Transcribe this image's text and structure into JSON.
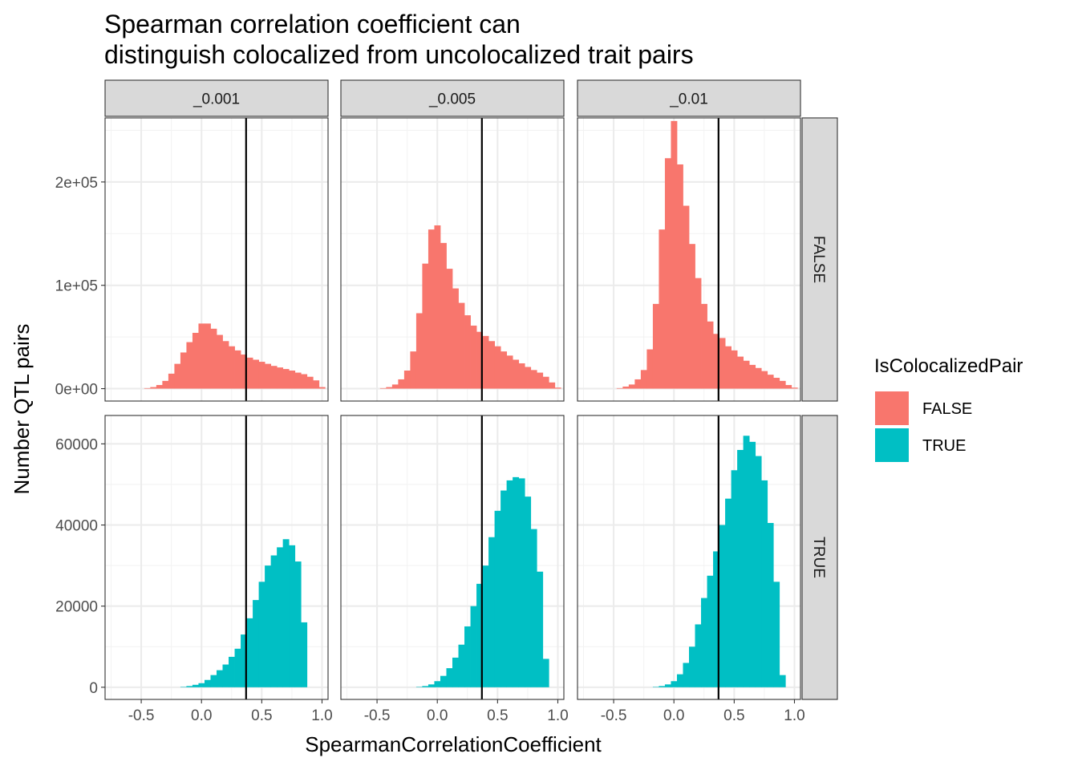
{
  "chart_data": {
    "type": "bar",
    "title": "Spearman correlation coefficient can\ndistinguish colocalized from uncolocalized trait pairs",
    "xlabel": "SpearmanCorrelationCoefficient",
    "ylabel": "Number QTL pairs",
    "facet_columns": [
      "_0.001",
      "_0.005",
      "_0.01"
    ],
    "facet_rows": [
      "FALSE",
      "TRUE"
    ],
    "x_ticks": [
      "-0.5",
      "0.0",
      "0.5",
      "1.0"
    ],
    "x_tick_values": [
      -0.5,
      0.0,
      0.5,
      1.0
    ],
    "xlim": [
      -0.8,
      1.05
    ],
    "y_ticks": {
      "FALSE": {
        "labels": [
          "0e+00",
          "1e+05",
          "2e+05"
        ],
        "values": [
          0,
          100000,
          200000
        ]
      },
      "TRUE": {
        "labels": [
          "0",
          "20000",
          "40000",
          "60000"
        ],
        "values": [
          0,
          20000,
          40000,
          60000
        ]
      }
    },
    "ylim": {
      "FALSE": [
        -12000,
        262000
      ],
      "TRUE": [
        -3000,
        67000
      ]
    },
    "vline_x": 0.37,
    "bin_width": 0.05,
    "grid": true,
    "legend": {
      "title": "IsColocalizedPair",
      "position": "right",
      "entries": [
        {
          "label": "FALSE",
          "color": "#F8766D"
        },
        {
          "label": "TRUE",
          "color": "#00BFC4"
        }
      ]
    },
    "series": [
      {
        "facet": "_0.001",
        "row": "FALSE",
        "x": [
          -0.45,
          -0.4,
          -0.35,
          -0.3,
          -0.25,
          -0.2,
          -0.15,
          -0.1,
          -0.05,
          0.0,
          0.05,
          0.1,
          0.15,
          0.2,
          0.25,
          0.3,
          0.35,
          0.4,
          0.45,
          0.5,
          0.55,
          0.6,
          0.65,
          0.7,
          0.75,
          0.8,
          0.85,
          0.9,
          0.95,
          1.0
        ],
        "values": [
          500,
          1500,
          3500,
          7500,
          14500,
          24000,
          35000,
          45000,
          54000,
          63000,
          63000,
          58000,
          52000,
          46000,
          41000,
          37000,
          33000,
          30000,
          28000,
          26000,
          24000,
          22000,
          20500,
          19000,
          17500,
          15500,
          14000,
          11500,
          8000,
          1500
        ]
      },
      {
        "facet": "_0.005",
        "row": "FALSE",
        "x": [
          -0.45,
          -0.4,
          -0.35,
          -0.3,
          -0.25,
          -0.2,
          -0.15,
          -0.1,
          -0.05,
          0.0,
          0.05,
          0.1,
          0.15,
          0.2,
          0.25,
          0.3,
          0.35,
          0.4,
          0.45,
          0.5,
          0.55,
          0.6,
          0.65,
          0.7,
          0.75,
          0.8,
          0.85,
          0.9,
          0.95,
          1.0
        ],
        "values": [
          500,
          1500,
          4000,
          9000,
          17500,
          36000,
          73000,
          121000,
          154000,
          158000,
          141000,
          116000,
          97000,
          83000,
          71000,
          61000,
          55000,
          51000,
          46000,
          41000,
          36000,
          32000,
          28000,
          24500,
          21000,
          18000,
          15500,
          11500,
          6000,
          1000
        ]
      },
      {
        "facet": "_0.01",
        "row": "FALSE",
        "x": [
          -0.45,
          -0.4,
          -0.35,
          -0.3,
          -0.25,
          -0.2,
          -0.15,
          -0.1,
          -0.05,
          0.0,
          0.05,
          0.1,
          0.15,
          0.2,
          0.25,
          0.3,
          0.35,
          0.4,
          0.45,
          0.5,
          0.55,
          0.6,
          0.65,
          0.7,
          0.75,
          0.8,
          0.85,
          0.9,
          0.95,
          1.0
        ],
        "values": [
          500,
          2000,
          4000,
          9000,
          18000,
          38000,
          82000,
          154000,
          223000,
          259000,
          217000,
          177000,
          140000,
          107000,
          82000,
          65000,
          53000,
          49000,
          41000,
          37000,
          31000,
          27000,
          23000,
          20000,
          17000,
          13500,
          10500,
          7500,
          3500,
          1000
        ]
      },
      {
        "facet": "_0.001",
        "row": "TRUE",
        "x": [
          -0.45,
          -0.4,
          -0.35,
          -0.3,
          -0.25,
          -0.2,
          -0.15,
          -0.1,
          -0.05,
          0.0,
          0.05,
          0.1,
          0.15,
          0.2,
          0.25,
          0.3,
          0.35,
          0.4,
          0.45,
          0.5,
          0.55,
          0.6,
          0.65,
          0.7,
          0.75,
          0.8,
          0.85,
          0.9,
          0.95,
          1.0
        ],
        "values": [
          0,
          0,
          0,
          0,
          0,
          0,
          100,
          300,
          600,
          1000,
          1800,
          3000,
          4200,
          5600,
          7500,
          9500,
          13000,
          17000,
          21500,
          26000,
          30000,
          32500,
          34500,
          36500,
          35000,
          31000,
          16000,
          0,
          0,
          0
        ]
      },
      {
        "facet": "_0.005",
        "row": "TRUE",
        "x": [
          -0.45,
          -0.4,
          -0.35,
          -0.3,
          -0.25,
          -0.2,
          -0.15,
          -0.1,
          -0.05,
          0.0,
          0.05,
          0.1,
          0.15,
          0.2,
          0.25,
          0.3,
          0.35,
          0.4,
          0.45,
          0.5,
          0.55,
          0.6,
          0.65,
          0.7,
          0.75,
          0.8,
          0.85,
          0.9,
          0.95,
          1.0
        ],
        "values": [
          0,
          0,
          0,
          0,
          0,
          0,
          100,
          300,
          700,
          1500,
          2800,
          4700,
          7300,
          10500,
          15000,
          20000,
          25500,
          30000,
          37000,
          43500,
          48500,
          51000,
          51800,
          51500,
          47000,
          39000,
          28500,
          7000,
          0,
          0
        ]
      },
      {
        "facet": "_0.01",
        "row": "TRUE",
        "x": [
          -0.45,
          -0.4,
          -0.35,
          -0.3,
          -0.25,
          -0.2,
          -0.15,
          -0.1,
          -0.05,
          0.0,
          0.05,
          0.1,
          0.15,
          0.2,
          0.25,
          0.3,
          0.35,
          0.4,
          0.45,
          0.5,
          0.55,
          0.6,
          0.65,
          0.7,
          0.75,
          0.8,
          0.85,
          0.9,
          0.95,
          1.0
        ],
        "values": [
          0,
          0,
          0,
          0,
          0,
          0,
          100,
          300,
          700,
          1500,
          3200,
          6000,
          10000,
          15500,
          22000,
          27500,
          33500,
          40000,
          46500,
          53500,
          58500,
          62000,
          60500,
          57000,
          51000,
          40500,
          26000,
          3000,
          0,
          0
        ]
      }
    ]
  }
}
